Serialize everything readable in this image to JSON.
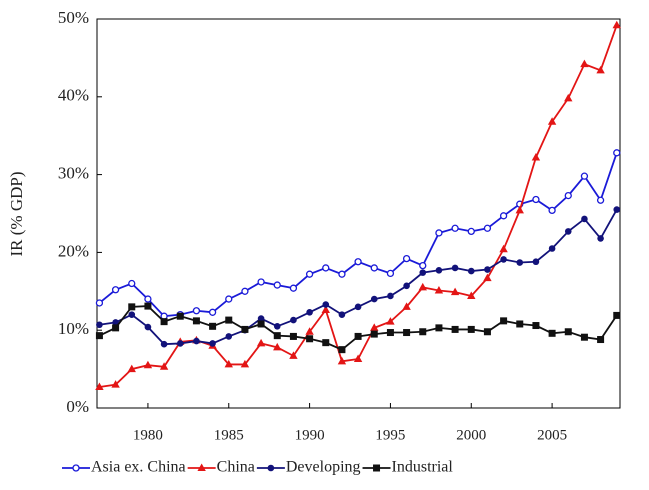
{
  "chart_data": {
    "type": "line",
    "y_label": "IR (% GDP)",
    "x": [
      1977,
      1978,
      1979,
      1980,
      1981,
      1982,
      1983,
      1984,
      1985,
      1986,
      1987,
      1988,
      1989,
      1990,
      1991,
      1992,
      1993,
      1994,
      1995,
      1996,
      1997,
      1998,
      1999,
      2000,
      2001,
      2002,
      2003,
      2004,
      2005,
      2006,
      2007,
      2008,
      2009
    ],
    "series": [
      {
        "name": "Asia ex. China",
        "color": "#1a1ad8",
        "marker": "open-circle",
        "values": [
          13.5,
          15.2,
          16.0,
          14.0,
          11.8,
          12.0,
          12.5,
          12.3,
          14.0,
          15.0,
          16.2,
          15.8,
          15.4,
          17.2,
          18.0,
          17.2,
          18.8,
          18.0,
          17.3,
          19.2,
          18.3,
          22.5,
          23.1,
          22.7,
          23.1,
          24.7,
          26.2,
          26.8,
          25.4,
          27.3,
          29.8,
          26.7,
          32.8
        ]
      },
      {
        "name": "China",
        "color": "#e31515",
        "marker": "triangle",
        "values": [
          2.7,
          3.0,
          5.0,
          5.5,
          5.3,
          8.5,
          8.7,
          8.0,
          5.6,
          5.6,
          8.3,
          7.8,
          6.7,
          9.8,
          12.6,
          6.0,
          6.3,
          10.3,
          11.1,
          13.0,
          15.5,
          15.1,
          14.9,
          14.4,
          16.7,
          20.4,
          25.4,
          32.2,
          36.8,
          39.8,
          44.2,
          43.4,
          49.2
        ]
      },
      {
        "name": "Developing",
        "color": "#12127a",
        "marker": "circle",
        "values": [
          10.7,
          11.0,
          12.0,
          10.4,
          8.2,
          8.3,
          8.6,
          8.3,
          9.2,
          10.0,
          11.5,
          10.5,
          11.3,
          12.3,
          13.3,
          12.0,
          13.0,
          14.0,
          14.4,
          15.7,
          17.4,
          17.7,
          18.0,
          17.6,
          17.8,
          19.1,
          18.7,
          18.8,
          20.5,
          22.7,
          24.3,
          21.8,
          25.5
        ]
      },
      {
        "name": "Industrial",
        "color": "#111111",
        "marker": "square",
        "values": [
          9.3,
          10.3,
          13.0,
          13.1,
          11.1,
          11.8,
          11.2,
          10.5,
          11.3,
          10.1,
          10.8,
          9.3,
          9.2,
          8.9,
          8.4,
          7.5,
          9.2,
          9.5,
          9.7,
          9.7,
          9.8,
          10.3,
          10.1,
          10.1,
          9.8,
          11.2,
          10.8,
          10.6,
          9.6,
          9.8,
          9.1,
          8.8,
          11.9
        ]
      }
    ],
    "xlim": [
      1976.85,
      2009.2
    ],
    "xticks": [
      1980,
      1985,
      1990,
      1995,
      2000,
      2005
    ],
    "ylim": [
      0,
      50
    ],
    "yticks": [
      {
        "value": 0,
        "label": "0%"
      },
      {
        "value": 10,
        "label": "10%"
      },
      {
        "value": 20,
        "label": "20%"
      },
      {
        "value": 30,
        "label": "30%"
      },
      {
        "value": 40,
        "label": "40%"
      },
      {
        "value": 50,
        "label": "50%"
      }
    ],
    "legend": "bottom"
  }
}
